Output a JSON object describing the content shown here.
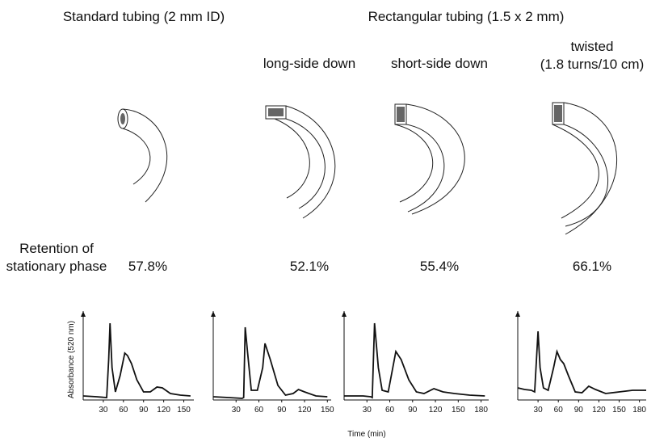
{
  "headers": {
    "standard": "Standard tubing (2 mm ID)",
    "rectangular": "Rectangular tubing (1.5 x 2 mm)"
  },
  "variants": {
    "long": "long-side down",
    "short": "short-side down",
    "twisted": [
      "twisted",
      "(1.8 turns/10 cm)"
    ]
  },
  "retention": {
    "label": [
      "Retention of",
      "stationary phase"
    ],
    "values": [
      "57.8%",
      "52.1%",
      "55.4%",
      "66.1%"
    ]
  },
  "shared_xlabel": "Time (min)",
  "chart_data": [
    {
      "type": "line",
      "ylabel": "Absorbance (520 nm)",
      "xlim": [
        0,
        165
      ],
      "xticks": [
        30,
        60,
        90,
        120,
        150
      ],
      "ylim": [
        0,
        100
      ],
      "color": "#111111",
      "x": [
        0,
        20,
        35,
        38,
        40,
        43,
        48,
        55,
        62,
        66,
        72,
        80,
        90,
        100,
        110,
        118,
        130,
        145,
        160
      ],
      "values": [
        5,
        4,
        3,
        50,
        95,
        40,
        10,
        30,
        58,
        55,
        45,
        25,
        10,
        10,
        16,
        15,
        8,
        6,
        5
      ]
    },
    {
      "type": "line",
      "xlim": [
        0,
        155
      ],
      "xticks": [
        30,
        60,
        90,
        120,
        150
      ],
      "ylim": [
        0,
        100
      ],
      "color": "#111111",
      "x": [
        0,
        20,
        38,
        40,
        42,
        45,
        50,
        58,
        65,
        68,
        75,
        85,
        95,
        105,
        112,
        120,
        135,
        150
      ],
      "values": [
        4,
        3,
        2,
        3,
        90,
        60,
        12,
        12,
        40,
        70,
        50,
        18,
        6,
        8,
        13,
        10,
        5,
        4
      ]
    },
    {
      "type": "line",
      "xlim": [
        0,
        190
      ],
      "xticks": [
        30,
        60,
        90,
        120,
        150,
        180
      ],
      "ylim": [
        0,
        100
      ],
      "color": "#111111",
      "x": [
        0,
        25,
        35,
        37,
        40,
        45,
        50,
        58,
        63,
        68,
        75,
        85,
        95,
        105,
        118,
        130,
        145,
        165,
        185
      ],
      "values": [
        5,
        5,
        4,
        3,
        95,
        40,
        12,
        10,
        35,
        60,
        50,
        25,
        10,
        8,
        14,
        10,
        8,
        6,
        5
      ]
    },
    {
      "type": "line",
      "xlim": [
        0,
        190
      ],
      "xticks": [
        30,
        60,
        90,
        120,
        150,
        180
      ],
      "ylim": [
        0,
        100
      ],
      "color": "#111111",
      "x": [
        0,
        10,
        20,
        25,
        27,
        30,
        33,
        38,
        45,
        53,
        58,
        63,
        68,
        75,
        85,
        95,
        105,
        115,
        130,
        150,
        170,
        190
      ],
      "values": [
        15,
        13,
        12,
        10,
        40,
        85,
        40,
        15,
        12,
        40,
        60,
        50,
        45,
        30,
        10,
        9,
        17,
        13,
        8,
        10,
        12,
        12
      ]
    }
  ]
}
